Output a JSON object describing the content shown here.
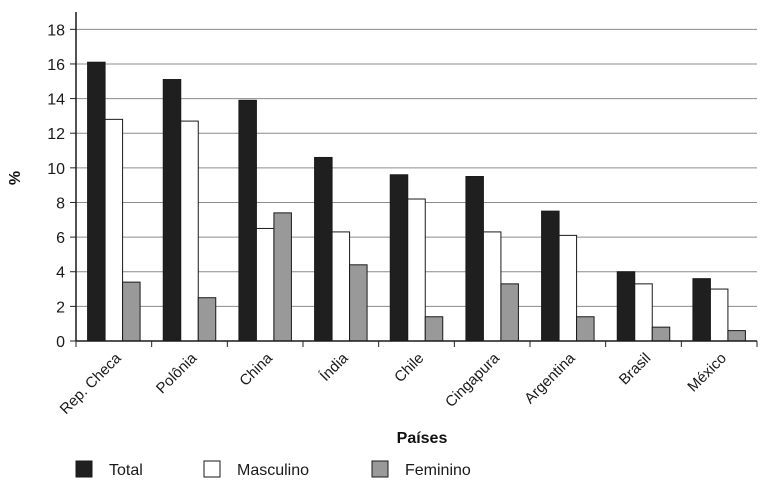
{
  "chart_data": {
    "type": "bar",
    "ylabel": "%",
    "xlabel": "Países",
    "ylim": [
      0,
      19
    ],
    "yticks": [
      0,
      2,
      4,
      6,
      8,
      10,
      12,
      14,
      16,
      18
    ],
    "grid": true,
    "legend_position": "bottom",
    "categories": [
      "Rep. Checa",
      "Polônia",
      "China",
      "Índia",
      "Chile",
      "Cingapura",
      "Argentina",
      "Brasil",
      "México"
    ],
    "series": [
      {
        "name": "Total",
        "color": "#1f1f1f",
        "values": [
          16.1,
          15.1,
          13.9,
          10.6,
          9.6,
          9.5,
          7.5,
          4.0,
          3.6
        ]
      },
      {
        "name": "Masculino",
        "color": "#ffffff",
        "values": [
          12.8,
          12.7,
          6.5,
          6.3,
          8.2,
          6.3,
          6.1,
          3.3,
          3.0
        ]
      },
      {
        "name": "Feminino",
        "color": "#999999",
        "values": [
          3.4,
          2.5,
          7.4,
          4.4,
          1.4,
          3.3,
          1.4,
          0.8,
          0.6
        ]
      }
    ]
  }
}
